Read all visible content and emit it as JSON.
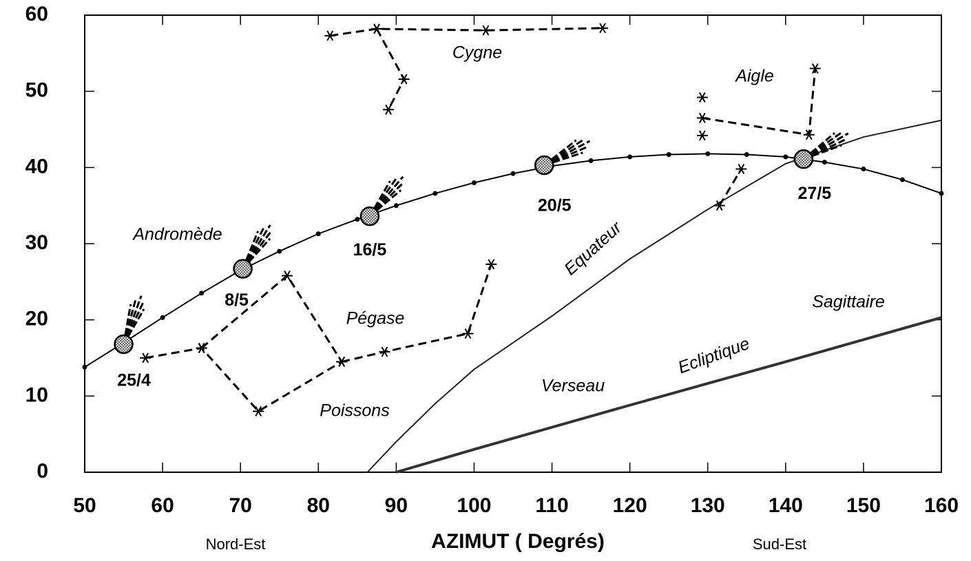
{
  "chart_data": {
    "type": "sky-map",
    "xlabel": "AZIMUT  ( Degrés)",
    "xlim": [
      50,
      160
    ],
    "xticks": [
      50,
      60,
      70,
      80,
      90,
      100,
      110,
      120,
      130,
      140,
      150,
      160
    ],
    "ylim": [
      0,
      60
    ],
    "yticks": [
      0,
      10,
      20,
      30,
      40,
      50,
      60
    ],
    "track": {
      "x": [
        50,
        55,
        60,
        65,
        70,
        75,
        80,
        85,
        90,
        95,
        100,
        105,
        110,
        115,
        120,
        125,
        130,
        135,
        140,
        145,
        150,
        155,
        160
      ],
      "y": [
        13.8,
        17,
        20.3,
        23.5,
        26.5,
        29,
        31.3,
        33.2,
        35,
        36.6,
        38,
        39.2,
        40.2,
        40.9,
        41.4,
        41.7,
        41.8,
        41.7,
        41.4,
        40.7,
        39.8,
        38.4,
        36.6
      ]
    },
    "comet": {
      "x": [
        55,
        70.3,
        86.6,
        109,
        142.3
      ],
      "y": [
        16.8,
        26.7,
        33.6,
        40.3,
        41.1
      ],
      "labels": [
        "25/4",
        "8/5",
        "16/5",
        "20/5",
        "27/5"
      ]
    },
    "equator": {
      "x": [
        86.3,
        90,
        95,
        100,
        110,
        120,
        130,
        140,
        150,
        160
      ],
      "y": [
        0,
        4,
        9,
        13.5,
        20.5,
        28,
        34.5,
        40.5,
        44,
        46.2
      ]
    },
    "ecliptic": {
      "x": [
        90,
        100,
        120,
        140,
        160
      ],
      "y": [
        0,
        3,
        8.8,
        14.5,
        20.3
      ]
    },
    "constellations": [
      {
        "x": [
          57.8,
          65,
          72.3,
          83,
          76,
          65,
          null,
          83,
          88.5,
          99.2,
          102.2
        ],
        "y": [
          15,
          16.3,
          8,
          14.5,
          25.8,
          16.3,
          null,
          14.5,
          15.8,
          18.2,
          27.3
        ]
      },
      {
        "x": [
          81.5,
          87.5,
          101.5,
          116.5,
          null,
          87.5,
          91,
          89
        ],
        "y": [
          57.3,
          58.2,
          58,
          58.3,
          null,
          58.2,
          51.6,
          47.6
        ]
      },
      {
        "x": [
          129.3,
          143,
          143.8,
          null,
          129.3,
          null,
          129.3,
          null,
          131.5,
          134.3
        ],
        "y": [
          46.5,
          44.3,
          53,
          null,
          49.2,
          null,
          44.2,
          null,
          35,
          39.8
        ]
      }
    ],
    "annotations": [
      "Cygne",
      "Aigle",
      "Andromède",
      "Pégase",
      "Poissons",
      "Verseau",
      "Sagittaire",
      "Equateur",
      "Ecliptique",
      "Nord-Est",
      "Sud-Est"
    ]
  }
}
